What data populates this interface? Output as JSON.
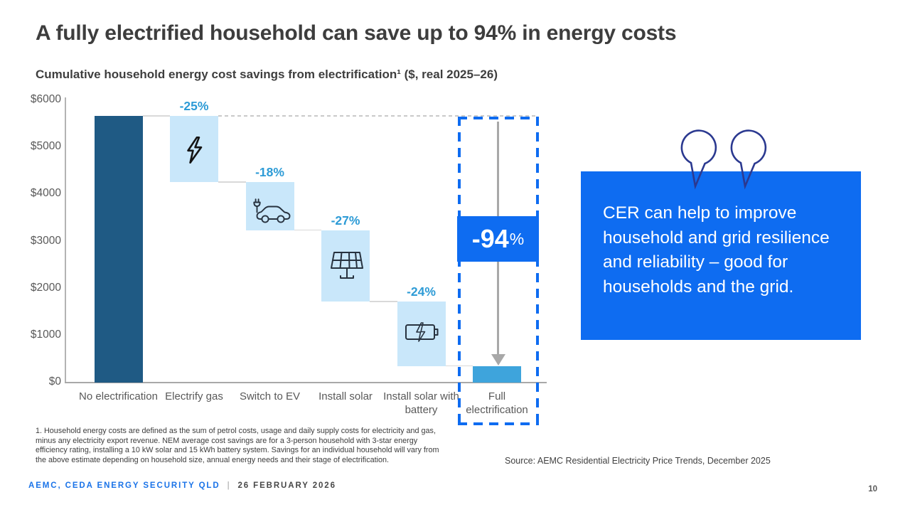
{
  "slide": {
    "title": "A fully electrified household can save up to 94% in energy costs",
    "subtitle": "Cumulative household energy cost savings from electrification¹ ($, real 2025–26)",
    "footnote": "1. Household energy costs are defined as the sum of petrol costs, usage and daily supply costs for electricity and gas, minus any electricity export revenue. NEM average cost savings are for a 3-person household with 3-star energy efficiency rating, installing a 10 kW solar and 15 kWh battery system. Savings for an individual household will vary from the above estimate depending on household size, annual energy needs and their stage of electrification.",
    "source": "Source: AEMC Residential Electricity Price Trends, December 2025",
    "footer_left": "AEMC, CEDA ENERGY SECURITY QLD",
    "footer_separator": "|",
    "footer_date": "26 FEBRUARY 2026",
    "page_number": "10"
  },
  "callout": {
    "text": "CER can help to improve household and grid resilience and reliability – good for households and the grid.",
    "background": "#0e6cf1",
    "quote_icon_color": "#2b3990"
  },
  "chart_data": {
    "type": "waterfall",
    "title": "Cumulative household energy cost savings from electrification ($, real 2025–26)",
    "ylabel": "$",
    "ylim": [
      0,
      6000
    ],
    "ytick_step": 1000,
    "yticks": [
      "$6000",
      "$5000",
      "$4000",
      "$3000",
      "$2000",
      "$1000",
      "$0"
    ],
    "categories": [
      "No electrification",
      "Electrify gas",
      "Switch to EV",
      "Install solar",
      "Install solar with battery",
      "Full electrification"
    ],
    "bars": [
      {
        "label": "No electrification",
        "from": 0,
        "to": 5660,
        "role": "start"
      },
      {
        "label": "Electrify gas",
        "from": 5660,
        "to": 4260,
        "pct": "-25%",
        "icon": "lightning-icon",
        "role": "step"
      },
      {
        "label": "Switch to EV",
        "from": 4260,
        "to": 3240,
        "pct": "-18%",
        "icon": "ev-car-icon",
        "role": "step"
      },
      {
        "label": "Install solar",
        "from": 3240,
        "to": 1720,
        "pct": "-27%",
        "icon": "solar-panel-icon",
        "role": "step"
      },
      {
        "label": "Install solar with battery",
        "from": 1720,
        "to": 350,
        "pct": "-24%",
        "icon": "battery-icon",
        "role": "step"
      },
      {
        "label": "Full electrification",
        "from": 0,
        "to": 350,
        "role": "end"
      }
    ],
    "total_label": {
      "value": "-94",
      "suffix": "%"
    },
    "legend": null,
    "grid": "dashed reference line at starting total",
    "colors": {
      "start_bar": "#1f5a84",
      "step_bar": "#c9e7fa",
      "end_bar": "#3ea4dc",
      "pct_label": "#2d9bd6",
      "highlight": "#0e6cf1"
    }
  }
}
